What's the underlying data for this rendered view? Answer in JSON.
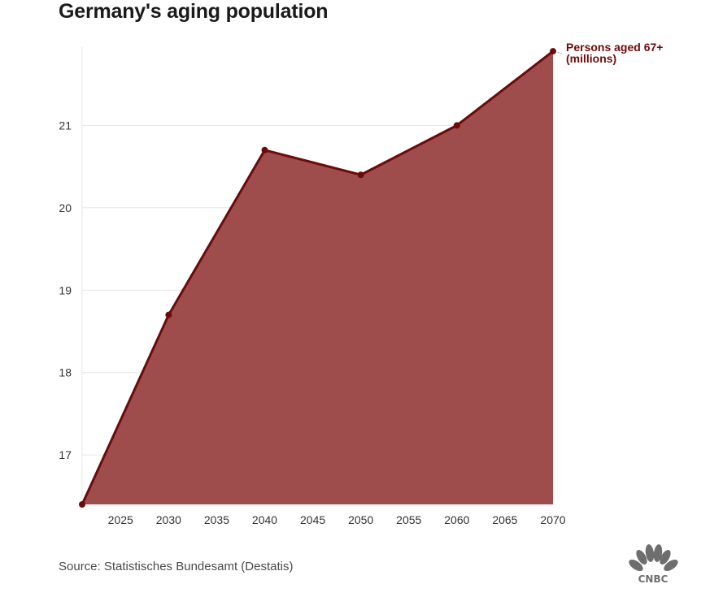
{
  "title": "Germany's aging population",
  "source": "Source: Statistisches Bundesamt (Destatis)",
  "logo_text": "CNBC",
  "chart_data": {
    "type": "area",
    "title": "Germany's aging population",
    "xlabel": "",
    "ylabel": "",
    "series": [
      {
        "name": "Persons aged 67+ (millions)",
        "label_lines": [
          "Persons aged 67+",
          "(millions)"
        ],
        "x": [
          2021,
          2030,
          2040,
          2050,
          2060,
          2070
        ],
        "values": [
          16.4,
          18.7,
          20.7,
          20.4,
          21.0,
          21.9
        ]
      }
    ],
    "xlim": [
      2021,
      2070
    ],
    "ylim": [
      16.4,
      21.95
    ],
    "xticks": [
      2025,
      2030,
      2035,
      2040,
      2045,
      2050,
      2055,
      2060,
      2065,
      2070
    ],
    "yticks": [
      17,
      18,
      19,
      20,
      21
    ],
    "grid": true,
    "colors": {
      "line": "#6e0a0a",
      "fill": "#9e4c4c",
      "grid": "#e6e6e6",
      "label": "#6e0a0a"
    }
  }
}
